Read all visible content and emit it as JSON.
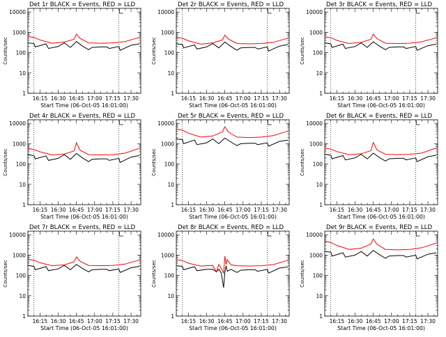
{
  "figure": {
    "title_template": "Det {n}r BLACK = Events, RED = LLD",
    "xlabel": "Start Time (06-Oct-05 16:01:00)",
    "ylabel": "Counts/sec",
    "colors": {
      "events": "#000000",
      "lld": "#ff0000",
      "axes": "#000000"
    },
    "xticks_labels": [
      "16:15",
      "16:30",
      "16:45",
      "17:00",
      "17:15",
      "17:30"
    ],
    "yticks_labels": [
      "1",
      "10",
      "100",
      "1000",
      "10000"
    ]
  },
  "chart_data": [
    {
      "type": "line",
      "title": "Det 1r BLACK = Events, RED = LLD",
      "xlabel": "Start Time (06-Oct-05 16:01:00)",
      "ylabel": "Counts/sec",
      "yscale": "log",
      "ylim": [
        1,
        15000
      ],
      "xlim": [
        "16:05",
        "17:38"
      ],
      "vlines": [
        "16:10",
        "17:20"
      ],
      "series": [
        {
          "name": "BLACK = Events",
          "color": "#000000",
          "x": [
            "16:05",
            "16:10",
            "16:11",
            "16:20",
            "16:22",
            "16:30",
            "16:35",
            "16:40",
            "16:45",
            "16:50",
            "16:55",
            "16:58",
            "17:05",
            "17:10",
            "17:12",
            "17:20",
            "17:21",
            "17:30",
            "17:37"
          ],
          "values": [
            300,
            280,
            190,
            270,
            160,
            200,
            300,
            180,
            350,
            210,
            140,
            180,
            190,
            190,
            160,
            200,
            130,
            230,
            270
          ]
        },
        {
          "name": "RED = LLD",
          "color": "#ff0000",
          "x": [
            "16:05",
            "16:10",
            "16:15",
            "16:25",
            "16:35",
            "16:43",
            "16:45",
            "16:48",
            "16:55",
            "17:05",
            "17:15",
            "17:25",
            "17:37"
          ],
          "values": [
            620,
            560,
            420,
            290,
            330,
            450,
            800,
            500,
            300,
            290,
            300,
            350,
            560
          ]
        }
      ]
    },
    {
      "type": "line",
      "title": "Det 2r BLACK = Events, RED = LLD",
      "xlabel": "Start Time (06-Oct-05 16:01:00)",
      "ylabel": "Counts/sec",
      "yscale": "log",
      "ylim": [
        1,
        15000
      ],
      "xlim": [
        "16:05",
        "17:38"
      ],
      "vlines": [
        "16:10",
        "17:20"
      ],
      "series": [
        {
          "name": "BLACK = Events",
          "color": "#000000",
          "x": [
            "16:05",
            "16:10",
            "16:11",
            "16:20",
            "16:22",
            "16:30",
            "16:35",
            "16:40",
            "16:45",
            "16:50",
            "16:55",
            "16:58",
            "17:05",
            "17:10",
            "17:12",
            "17:20",
            "17:21",
            "17:30",
            "17:37"
          ],
          "values": [
            270,
            250,
            170,
            240,
            150,
            190,
            280,
            170,
            330,
            200,
            130,
            170,
            180,
            180,
            150,
            190,
            120,
            210,
            250
          ]
        },
        {
          "name": "RED = LLD",
          "color": "#ff0000",
          "x": [
            "16:05",
            "16:10",
            "16:15",
            "16:25",
            "16:35",
            "16:43",
            "16:45",
            "16:48",
            "16:55",
            "17:05",
            "17:15",
            "17:25",
            "17:37"
          ],
          "values": [
            560,
            510,
            380,
            260,
            300,
            420,
            720,
            460,
            280,
            270,
            280,
            320,
            520
          ]
        }
      ]
    },
    {
      "type": "line",
      "title": "Det 3r BLACK = Events, RED = LLD",
      "xlabel": "Start Time (06-Oct-05 16:01:00)",
      "ylabel": "Counts/sec",
      "yscale": "log",
      "ylim": [
        1,
        15000
      ],
      "xlim": [
        "16:05",
        "17:38"
      ],
      "vlines": [
        "16:10",
        "17:20"
      ],
      "series": [
        {
          "name": "BLACK = Events",
          "color": "#000000",
          "x": [
            "16:05",
            "16:10",
            "16:11",
            "16:20",
            "16:22",
            "16:30",
            "16:35",
            "16:40",
            "16:45",
            "16:50",
            "16:55",
            "16:58",
            "17:05",
            "17:10",
            "17:12",
            "17:20",
            "17:21",
            "17:30",
            "17:37"
          ],
          "values": [
            300,
            270,
            180,
            260,
            160,
            200,
            300,
            180,
            340,
            210,
            140,
            180,
            190,
            190,
            160,
            200,
            130,
            220,
            260
          ]
        },
        {
          "name": "RED = LLD",
          "color": "#ff0000",
          "x": [
            "16:05",
            "16:10",
            "16:15",
            "16:25",
            "16:35",
            "16:43",
            "16:45",
            "16:48",
            "16:55",
            "17:05",
            "17:15",
            "17:25",
            "17:37"
          ],
          "values": [
            600,
            540,
            400,
            280,
            320,
            450,
            820,
            490,
            290,
            280,
            290,
            340,
            540
          ]
        }
      ]
    },
    {
      "type": "line",
      "title": "Det 4r BLACK = Events, RED = LLD",
      "xlabel": "Start Time (06-Oct-05 16:01:00)",
      "ylabel": "Counts/sec",
      "yscale": "log",
      "ylim": [
        1,
        15000
      ],
      "xlim": [
        "16:05",
        "17:38"
      ],
      "vlines": [
        "16:10",
        "17:20"
      ],
      "series": [
        {
          "name": "BLACK = Events",
          "color": "#000000",
          "x": [
            "16:05",
            "16:10",
            "16:11",
            "16:20",
            "16:22",
            "16:30",
            "16:35",
            "16:40",
            "16:45",
            "16:50",
            "16:55",
            "16:58",
            "17:05",
            "17:10",
            "17:12",
            "17:20",
            "17:21",
            "17:30",
            "17:37"
          ],
          "values": [
            280,
            260,
            180,
            250,
            150,
            190,
            290,
            170,
            330,
            200,
            130,
            170,
            180,
            180,
            150,
            190,
            120,
            220,
            260
          ]
        },
        {
          "name": "RED = LLD",
          "color": "#ff0000",
          "x": [
            "16:05",
            "16:10",
            "16:15",
            "16:25",
            "16:35",
            "16:43",
            "16:45",
            "16:48",
            "16:55",
            "17:05",
            "17:15",
            "17:25",
            "17:37"
          ],
          "values": [
            580,
            520,
            400,
            280,
            310,
            440,
            1100,
            480,
            290,
            280,
            290,
            340,
            600
          ]
        }
      ]
    },
    {
      "type": "line",
      "title": "Det 5r BLACK = Events, RED = LLD",
      "xlabel": "Start Time (06-Oct-05 16:01:00)",
      "ylabel": "Counts/sec",
      "yscale": "log",
      "ylim": [
        1,
        15000
      ],
      "xlim": [
        "16:05",
        "17:38"
      ],
      "vlines": [
        "16:10",
        "17:20"
      ],
      "series": [
        {
          "name": "BLACK = Events",
          "color": "#000000",
          "x": [
            "16:05",
            "16:10",
            "16:11",
            "16:20",
            "16:22",
            "16:30",
            "16:35",
            "16:40",
            "16:45",
            "16:50",
            "16:55",
            "16:58",
            "17:05",
            "17:10",
            "17:12",
            "17:20",
            "17:21",
            "17:30",
            "17:37"
          ],
          "values": [
            1700,
            1600,
            1000,
            1500,
            900,
            1100,
            1700,
            1000,
            1900,
            1200,
            800,
            1000,
            1050,
            1050,
            900,
            1100,
            750,
            1300,
            1500
          ]
        },
        {
          "name": "RED = LLD",
          "color": "#ff0000",
          "x": [
            "16:05",
            "16:10",
            "16:15",
            "16:25",
            "16:35",
            "16:43",
            "16:45",
            "16:48",
            "16:55",
            "17:05",
            "17:15",
            "17:25",
            "17:37"
          ],
          "values": [
            5200,
            4600,
            3300,
            2100,
            2400,
            3800,
            6800,
            3700,
            2100,
            2000,
            2100,
            2500,
            4200
          ]
        }
      ]
    },
    {
      "type": "line",
      "title": "Det 6r BLACK = Events, RED = LLD",
      "xlabel": "Start Time (06-Oct-05 16:01:00)",
      "ylabel": "Counts/sec",
      "yscale": "log",
      "ylim": [
        1,
        15000
      ],
      "xlim": [
        "16:05",
        "17:38"
      ],
      "vlines": [
        "16:10",
        "17:20"
      ],
      "series": [
        {
          "name": "BLACK = Events",
          "color": "#000000",
          "x": [
            "16:05",
            "16:10",
            "16:11",
            "16:20",
            "16:22",
            "16:30",
            "16:35",
            "16:40",
            "16:45",
            "16:50",
            "16:55",
            "16:58",
            "17:05",
            "17:10",
            "17:12",
            "17:20",
            "17:21",
            "17:30",
            "17:37"
          ],
          "values": [
            300,
            270,
            180,
            260,
            160,
            200,
            300,
            180,
            340,
            210,
            140,
            180,
            190,
            190,
            160,
            200,
            130,
            230,
            270
          ]
        },
        {
          "name": "RED = LLD",
          "color": "#ff0000",
          "x": [
            "16:05",
            "16:10",
            "16:15",
            "16:25",
            "16:35",
            "16:43",
            "16:45",
            "16:48",
            "16:55",
            "17:05",
            "17:15",
            "17:25",
            "17:37"
          ],
          "values": [
            600,
            540,
            410,
            290,
            320,
            450,
            1150,
            490,
            300,
            290,
            300,
            350,
            620
          ]
        }
      ]
    },
    {
      "type": "line",
      "title": "Det 7r BLACK = Events, RED = LLD",
      "xlabel": "Start Time (06-Oct-05 16:01:00)",
      "ylabel": "Counts/sec",
      "yscale": "log",
      "ylim": [
        1,
        15000
      ],
      "xlim": [
        "16:05",
        "17:38"
      ],
      "vlines": [
        "16:10",
        "17:20"
      ],
      "series": [
        {
          "name": "BLACK = Events",
          "color": "#000000",
          "x": [
            "16:05",
            "16:10",
            "16:11",
            "16:20",
            "16:22",
            "16:30",
            "16:35",
            "16:40",
            "16:45",
            "16:50",
            "16:55",
            "16:58",
            "17:05",
            "17:10",
            "17:12",
            "17:20",
            "17:21",
            "17:30",
            "17:37"
          ],
          "values": [
            310,
            280,
            190,
            270,
            170,
            210,
            310,
            190,
            350,
            220,
            150,
            190,
            200,
            200,
            170,
            210,
            140,
            240,
            280
          ]
        },
        {
          "name": "RED = LLD",
          "color": "#ff0000",
          "x": [
            "16:05",
            "16:10",
            "16:15",
            "16:25",
            "16:35",
            "16:43",
            "16:45",
            "16:48",
            "16:55",
            "17:05",
            "17:15",
            "17:25",
            "17:37"
          ],
          "values": [
            620,
            560,
            420,
            300,
            330,
            460,
            820,
            500,
            310,
            300,
            310,
            360,
            580
          ]
        }
      ]
    },
    {
      "type": "line",
      "title": "Det 8r BLACK = Events, RED = LLD",
      "xlabel": "Start Time (06-Oct-05 16:01:00)",
      "ylabel": "Counts/sec",
      "yscale": "log",
      "ylim": [
        1,
        15000
      ],
      "xlim": [
        "16:05",
        "17:38"
      ],
      "vlines": [
        "16:10",
        "17:20"
      ],
      "series": [
        {
          "name": "BLACK = Events",
          "color": "#000000",
          "x": [
            "16:05",
            "16:10",
            "16:11",
            "16:20",
            "16:22",
            "16:30",
            "16:35",
            "16:38",
            "16:40",
            "16:42",
            "16:44",
            "16:45",
            "16:46",
            "16:47",
            "16:50",
            "16:55",
            "16:58",
            "17:05",
            "17:10",
            "17:12",
            "17:20",
            "17:21",
            "17:30",
            "17:37"
          ],
          "values": [
            300,
            280,
            190,
            270,
            170,
            200,
            200,
            150,
            200,
            130,
            25,
            150,
            300,
            160,
            200,
            140,
            180,
            190,
            190,
            160,
            200,
            130,
            230,
            260
          ]
        },
        {
          "name": "RED = LLD",
          "color": "#ff0000",
          "x": [
            "16:05",
            "16:10",
            "16:15",
            "16:25",
            "16:35",
            "16:38",
            "16:40",
            "16:42",
            "16:44",
            "16:45",
            "16:46",
            "16:47",
            "16:50",
            "16:55",
            "17:05",
            "17:15",
            "17:25",
            "17:37"
          ],
          "values": [
            600,
            540,
            400,
            290,
            310,
            150,
            350,
            220,
            130,
            900,
            350,
            600,
            330,
            300,
            290,
            300,
            340,
            560
          ]
        }
      ]
    },
    {
      "type": "line",
      "title": "Det 9r BLACK = Events, RED = LLD",
      "xlabel": "Start Time (06-Oct-05 16:01:00)",
      "ylabel": "Counts/sec",
      "yscale": "log",
      "ylim": [
        1,
        15000
      ],
      "xlim": [
        "16:05",
        "17:38"
      ],
      "vlines": [
        "16:10",
        "17:20"
      ],
      "series": [
        {
          "name": "BLACK = Events",
          "color": "#000000",
          "x": [
            "16:05",
            "16:10",
            "16:11",
            "16:20",
            "16:22",
            "16:30",
            "16:35",
            "16:40",
            "16:45",
            "16:50",
            "16:55",
            "16:58",
            "17:05",
            "17:10",
            "17:12",
            "17:20",
            "17:21",
            "17:30",
            "17:37"
          ],
          "values": [
            1500,
            1400,
            900,
            1300,
            800,
            1000,
            1500,
            900,
            1700,
            1050,
            700,
            900,
            950,
            950,
            800,
            1000,
            650,
            1100,
            1300
          ]
        },
        {
          "name": "RED = LLD",
          "color": "#ff0000",
          "x": [
            "16:05",
            "16:10",
            "16:15",
            "16:25",
            "16:35",
            "16:43",
            "16:45",
            "16:48",
            "16:55",
            "17:05",
            "17:15",
            "17:25",
            "17:37"
          ],
          "values": [
            4800,
            4200,
            3000,
            1900,
            2200,
            3500,
            6200,
            3400,
            1900,
            1800,
            1900,
            2300,
            3900
          ]
        }
      ]
    }
  ]
}
